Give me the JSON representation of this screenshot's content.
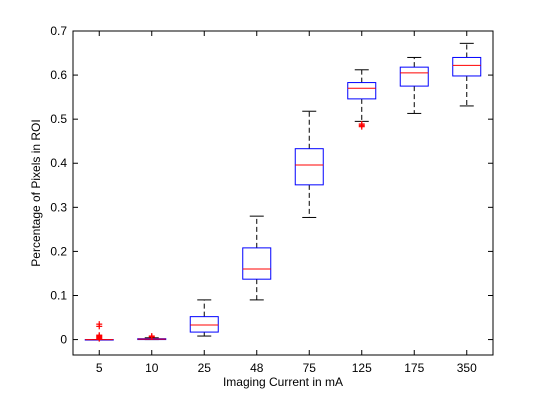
{
  "chart_data": {
    "type": "box",
    "title": "",
    "xlabel": "Imaging Current in mA",
    "ylabel": "Percentage of Pixels in ROI",
    "ylim": [
      -0.035,
      0.7
    ],
    "yticks": [
      "0",
      "0.1",
      "0.2",
      "0.3",
      "0.4",
      "0.5",
      "0.6",
      "0.7"
    ],
    "ytick_values": [
      0,
      0.1,
      0.2,
      0.3,
      0.4,
      0.5,
      0.6,
      0.7
    ],
    "categories": [
      "5",
      "10",
      "25",
      "48",
      "75",
      "125",
      "175",
      "350"
    ],
    "grid": false,
    "colors": {
      "box": "#0000ff",
      "median": "#ff0000",
      "whisker": "#000000",
      "outlier": "#ff0000",
      "axis": "#000000"
    },
    "boxes": [
      {
        "category": "5",
        "q1": 0.0,
        "median": 0.0,
        "q3": 0.0,
        "whisker_low": 0.0,
        "whisker_high": 0.0,
        "outliers": [
          0.002,
          0.004,
          0.006,
          0.008,
          0.01,
          0.03,
          0.035
        ]
      },
      {
        "category": "10",
        "q1": 0.0,
        "median": 0.001,
        "q3": 0.002,
        "whisker_low": 0.0,
        "whisker_high": 0.004,
        "outliers": [
          0.006,
          0.008
        ]
      },
      {
        "category": "25",
        "q1": 0.017,
        "median": 0.033,
        "q3": 0.052,
        "whisker_low": 0.008,
        "whisker_high": 0.09,
        "outliers": []
      },
      {
        "category": "48",
        "q1": 0.137,
        "median": 0.16,
        "q3": 0.208,
        "whisker_low": 0.09,
        "whisker_high": 0.28,
        "outliers": []
      },
      {
        "category": "75",
        "q1": 0.351,
        "median": 0.396,
        "q3": 0.433,
        "whisker_low": 0.277,
        "whisker_high": 0.518,
        "outliers": []
      },
      {
        "category": "125",
        "q1": 0.546,
        "median": 0.57,
        "q3": 0.583,
        "whisker_low": 0.495,
        "whisker_high": 0.612,
        "outliers": [
          0.483,
          0.486,
          0.489
        ]
      },
      {
        "category": "175",
        "q1": 0.575,
        "median": 0.605,
        "q3": 0.618,
        "whisker_low": 0.513,
        "whisker_high": 0.64,
        "outliers": []
      },
      {
        "category": "350",
        "q1": 0.598,
        "median": 0.622,
        "q3": 0.64,
        "whisker_low": 0.53,
        "whisker_high": 0.672,
        "outliers": []
      }
    ]
  }
}
